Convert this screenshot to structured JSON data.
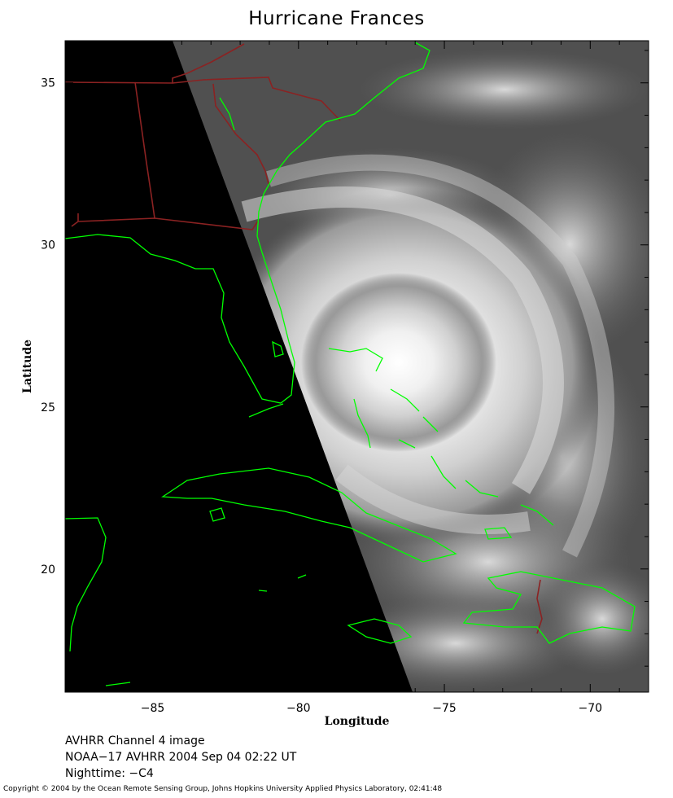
{
  "title": "Hurricane Frances",
  "axes": {
    "xlabel": "Longitude",
    "ylabel": "Latitude",
    "x_ticks": [
      {
        "value": -85,
        "label": "−85"
      },
      {
        "value": -80,
        "label": "−80"
      },
      {
        "value": -75,
        "label": "−75"
      },
      {
        "value": -70,
        "label": "−70"
      }
    ],
    "y_ticks": [
      {
        "value": 35,
        "label": "35"
      },
      {
        "value": 30,
        "label": "30"
      },
      {
        "value": 25,
        "label": "25"
      },
      {
        "value": 20,
        "label": "20"
      }
    ],
    "xlim": [
      -88,
      -68
    ],
    "ylim": [
      16.2,
      36.3
    ]
  },
  "colors": {
    "coastline": "#00ff00",
    "borders": "#8b2222",
    "night_side": "#000000",
    "ocean_ir": "#4a4a4a",
    "cloud": "#f2f2f2"
  },
  "storm_center": {
    "lon": -76.8,
    "lat": 25.9
  },
  "info": {
    "line1": "AVHRR Channel 4 image",
    "line2": "NOAA−17 AVHRR 2004 Sep 04 02:22 UT",
    "line3": "Nighttime: −C4"
  },
  "copyright": "Copyright © 2004 by the Ocean Remote Sensing Group, Johns Hopkins University Applied Physics Laboratory, 02:41:48"
}
